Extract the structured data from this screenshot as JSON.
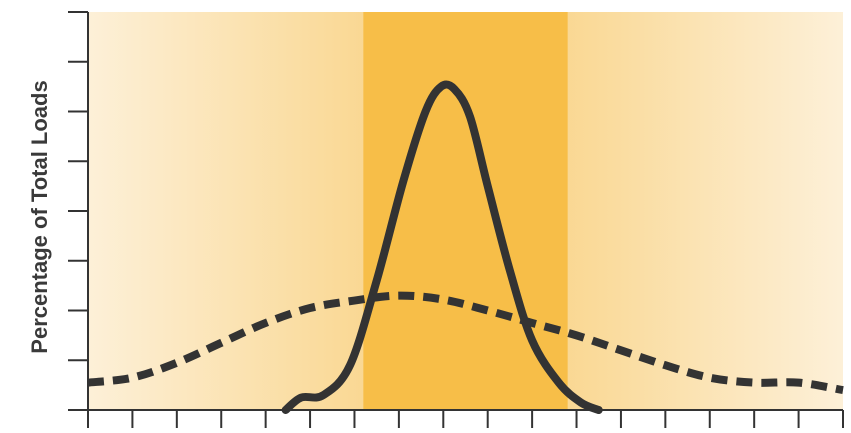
{
  "chart_data": {
    "type": "line",
    "title": "",
    "xlabel": "",
    "ylabel": "Percentage of Total Loads",
    "xlim": [
      0,
      17
    ],
    "ylim": [
      0,
      8
    ],
    "x_tick_count": 18,
    "y_tick_count": 9,
    "highlight_band": {
      "x_start": 6.2,
      "x_end": 10.8,
      "color": "#f7be48"
    },
    "background_gradient": {
      "edge_color": "#fdf0d8",
      "center_color": "#f8cf7a"
    },
    "series": [
      {
        "style": "solid",
        "color": "#333333",
        "points": [
          [
            4.45,
            0.0
          ],
          [
            4.8,
            0.25
          ],
          [
            5.3,
            0.3
          ],
          [
            5.9,
            0.9
          ],
          [
            6.5,
            2.6
          ],
          [
            7.1,
            4.6
          ],
          [
            7.6,
            6.0
          ],
          [
            7.95,
            6.5
          ],
          [
            8.25,
            6.45
          ],
          [
            8.6,
            5.9
          ],
          [
            9.0,
            4.5
          ],
          [
            9.5,
            2.8
          ],
          [
            10.0,
            1.4
          ],
          [
            10.6,
            0.55
          ],
          [
            11.1,
            0.15
          ],
          [
            11.5,
            0.0
          ]
        ]
      },
      {
        "style": "dashed",
        "color": "#333333",
        "points": [
          [
            0.0,
            0.55
          ],
          [
            1.0,
            0.65
          ],
          [
            2.0,
            0.95
          ],
          [
            3.0,
            1.35
          ],
          [
            4.0,
            1.75
          ],
          [
            5.0,
            2.05
          ],
          [
            6.0,
            2.2
          ],
          [
            7.0,
            2.3
          ],
          [
            8.0,
            2.22
          ],
          [
            9.0,
            2.0
          ],
          [
            10.0,
            1.75
          ],
          [
            11.0,
            1.5
          ],
          [
            12.0,
            1.2
          ],
          [
            13.0,
            0.9
          ],
          [
            14.0,
            0.65
          ],
          [
            15.0,
            0.55
          ],
          [
            16.0,
            0.55
          ],
          [
            17.0,
            0.4
          ]
        ]
      }
    ]
  }
}
